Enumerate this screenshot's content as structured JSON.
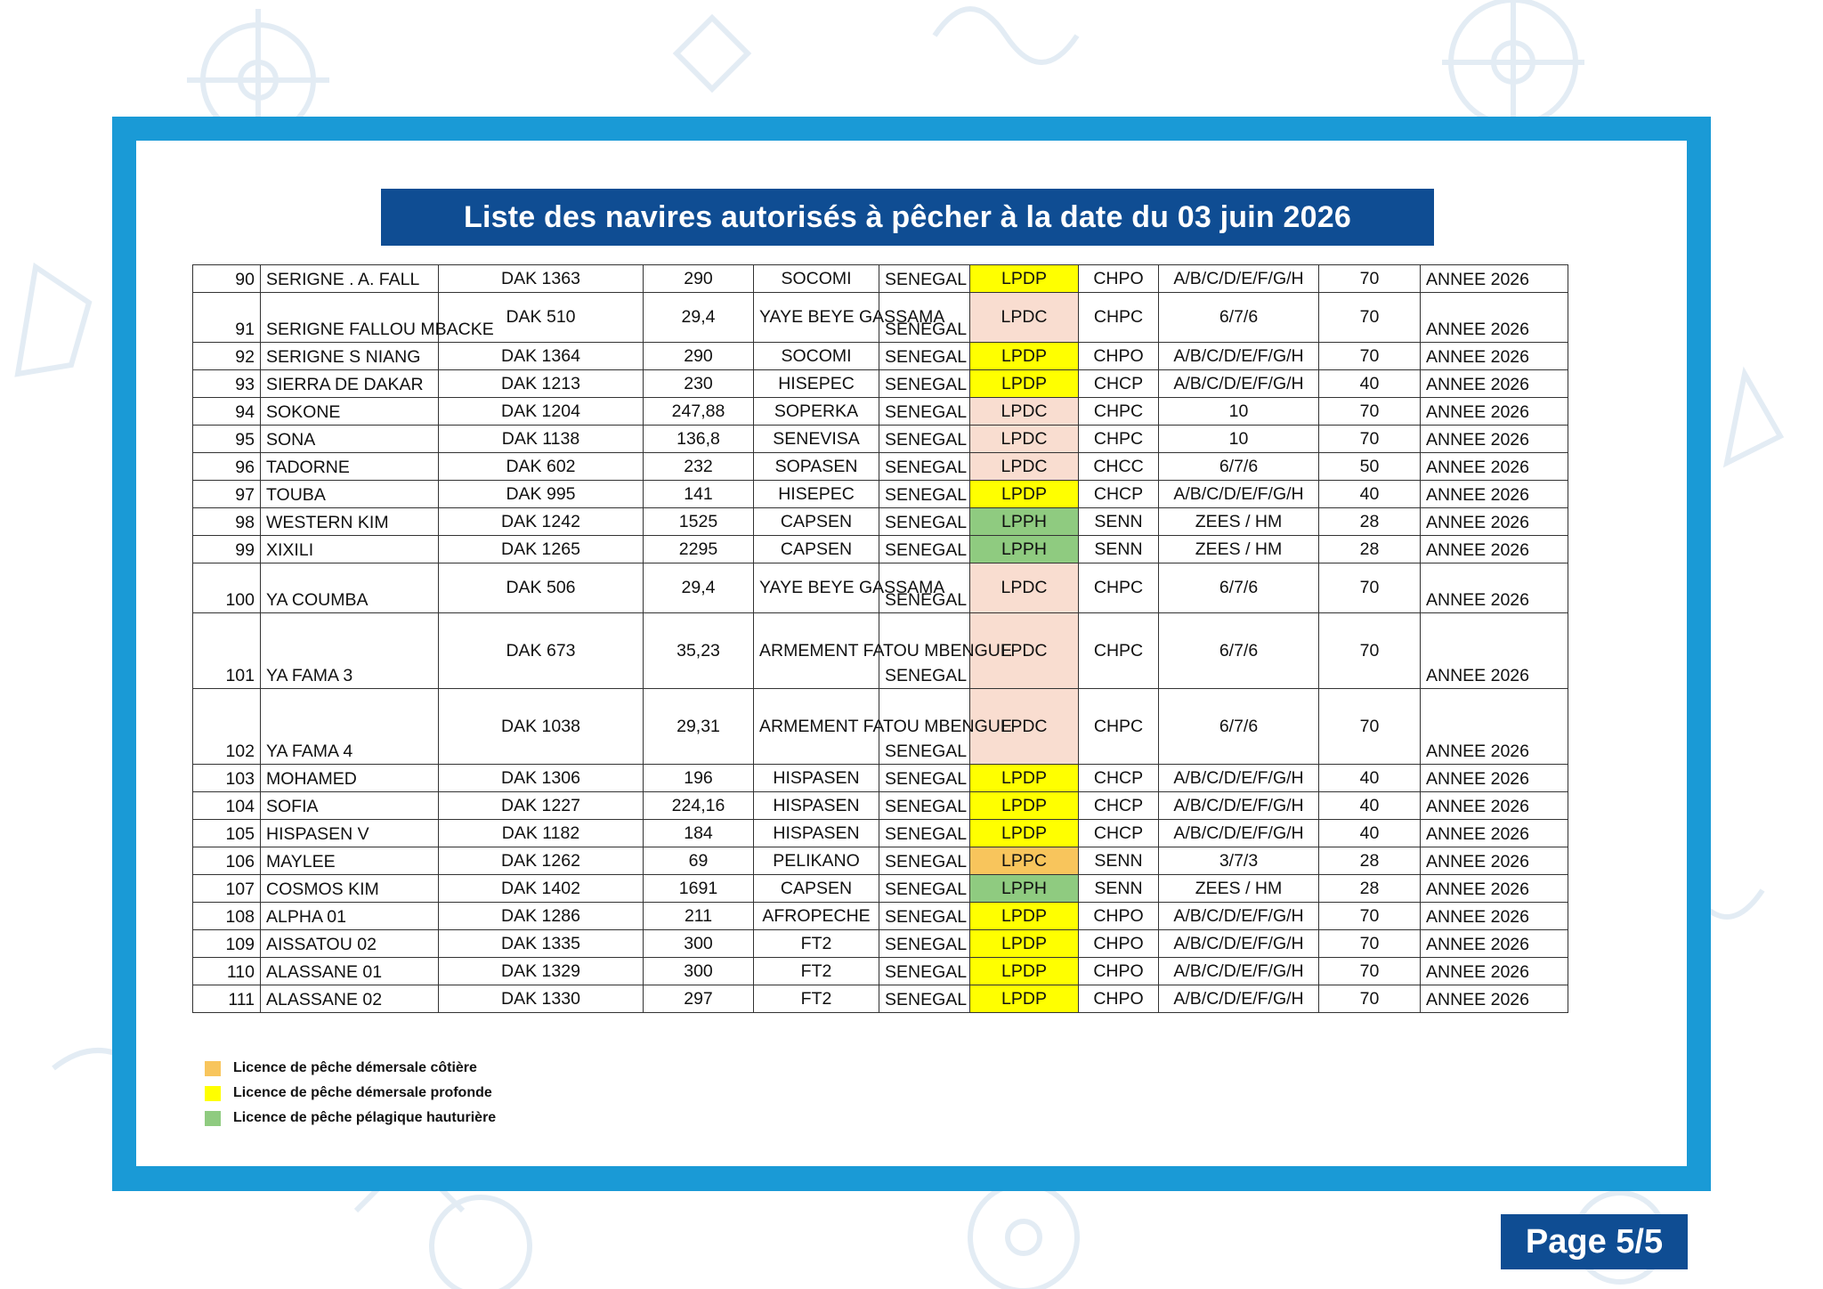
{
  "title": "Liste des navires autorisés à pêcher à la date du 03 juin 2026",
  "page_label": "Page 5/5",
  "colors": {
    "frame": "#1a9ad6",
    "banner": "#0f4d93",
    "LPDP": "#ffff00",
    "LPDC": "#f9ddd0",
    "LPPH": "#8fcb80",
    "LPPC": "#f8c55c"
  },
  "rows": [
    {
      "n": "90",
      "name": "SERIGNE . A. FALL",
      "reg": "DAK 1363",
      "gt": "290",
      "owner": "SOCOMI",
      "country": "SENEGAL",
      "licence": "LPDP",
      "cat": "CHPO",
      "zones": "A/B/C/D/E/F/G/H",
      "crew": "70",
      "validity": "ANNEE 2026",
      "size": 1
    },
    {
      "n": "91",
      "name": "SERIGNE FALLOU MBACKE",
      "reg": "DAK 510",
      "gt": "29,4",
      "owner": "YAYE BEYE GASSAMA",
      "country": "SENEGAL",
      "licence": "LPDC",
      "cat": "CHPC",
      "zones": "6/7/6",
      "crew": "70",
      "validity": "ANNEE 2026",
      "size": 2
    },
    {
      "n": "92",
      "name": "SERIGNE S NIANG",
      "reg": "DAK 1364",
      "gt": "290",
      "owner": "SOCOMI",
      "country": "SENEGAL",
      "licence": "LPDP",
      "cat": "CHPO",
      "zones": "A/B/C/D/E/F/G/H",
      "crew": "70",
      "validity": "ANNEE 2026",
      "size": 1
    },
    {
      "n": "93",
      "name": "SIERRA DE DAKAR",
      "reg": "DAK 1213",
      "gt": "230",
      "owner": "HISEPEC",
      "country": "SENEGAL",
      "licence": "LPDP",
      "cat": "CHCP",
      "zones": "A/B/C/D/E/F/G/H",
      "crew": "40",
      "validity": "ANNEE 2026",
      "size": 1
    },
    {
      "n": "94",
      "name": "SOKONE",
      "reg": "DAK 1204",
      "gt": "247,88",
      "owner": "SOPERKA",
      "country": "SENEGAL",
      "licence": "LPDC",
      "cat": "CHPC",
      "zones": "10",
      "crew": "70",
      "validity": "ANNEE 2026",
      "size": 1
    },
    {
      "n": "95",
      "name": "SONA",
      "reg": "DAK 1138",
      "gt": "136,8",
      "owner": "SENEVISA",
      "country": "SENEGAL",
      "licence": "LPDC",
      "cat": "CHPC",
      "zones": "10",
      "crew": "70",
      "validity": "ANNEE 2026",
      "size": 1
    },
    {
      "n": "96",
      "name": "TADORNE",
      "reg": "DAK 602",
      "gt": "232",
      "owner": "SOPASEN",
      "country": "SENEGAL",
      "licence": "LPDC",
      "cat": "CHCC",
      "zones": "6/7/6",
      "crew": "50",
      "validity": "ANNEE 2026",
      "size": 1
    },
    {
      "n": "97",
      "name": "TOUBA",
      "reg": "DAK 995",
      "gt": "141",
      "owner": "HISEPEC",
      "country": "SENEGAL",
      "licence": "LPDP",
      "cat": "CHCP",
      "zones": "A/B/C/D/E/F/G/H",
      "crew": "40",
      "validity": "ANNEE 2026",
      "size": 1
    },
    {
      "n": "98",
      "name": "WESTERN KIM",
      "reg": "DAK 1242",
      "gt": "1525",
      "owner": "CAPSEN",
      "country": "SENEGAL",
      "licence": "LPPH",
      "cat": "SENN",
      "zones": "ZEES / HM",
      "crew": "28",
      "validity": "ANNEE 2026",
      "size": 1
    },
    {
      "n": "99",
      "name": "XIXILI",
      "reg": "DAK 1265",
      "gt": "2295",
      "owner": "CAPSEN",
      "country": "SENEGAL",
      "licence": "LPPH",
      "cat": "SENN",
      "zones": "ZEES / HM",
      "crew": "28",
      "validity": "ANNEE 2026",
      "size": 1
    },
    {
      "n": "100",
      "name": "YA COUMBA",
      "reg": "DAK 506",
      "gt": "29,4",
      "owner": "YAYE BEYE GASSAMA",
      "country": "SENEGAL",
      "licence": "LPDC",
      "cat": "CHPC",
      "zones": "6/7/6",
      "crew": "70",
      "validity": "ANNEE 2026",
      "size": 2
    },
    {
      "n": "101",
      "name": "YA FAMA 3",
      "reg": "DAK 673",
      "gt": "35,23",
      "owner": "ARMEMENT FATOU MBENGUE",
      "country": "SENEGAL",
      "licence": "LPDC",
      "cat": "CHPC",
      "zones": "6/7/6",
      "crew": "70",
      "validity": "ANNEE 2026",
      "size": 3
    },
    {
      "n": "102",
      "name": "YA FAMA 4",
      "reg": "DAK 1038",
      "gt": "29,31",
      "owner": "ARMEMENT FATOU MBENGUE",
      "country": "SENEGAL",
      "licence": "LPDC",
      "cat": "CHPC",
      "zones": "6/7/6",
      "crew": "70",
      "validity": "ANNEE 2026",
      "size": 3
    },
    {
      "n": "103",
      "name": "MOHAMED",
      "reg": "DAK 1306",
      "gt": "196",
      "owner": "HISPASEN",
      "country": "SENEGAL",
      "licence": "LPDP",
      "cat": "CHCP",
      "zones": "A/B/C/D/E/F/G/H",
      "crew": "40",
      "validity": "ANNEE 2026",
      "size": 1
    },
    {
      "n": "104",
      "name": "SOFIA",
      "reg": "DAK 1227",
      "gt": "224,16",
      "owner": "HISPASEN",
      "country": "SENEGAL",
      "licence": "LPDP",
      "cat": "CHCP",
      "zones": "A/B/C/D/E/F/G/H",
      "crew": "40",
      "validity": "ANNEE 2026",
      "size": 1
    },
    {
      "n": "105",
      "name": "HISPASEN V",
      "reg": "DAK 1182",
      "gt": "184",
      "owner": "HISPASEN",
      "country": "SENEGAL",
      "licence": "LPDP",
      "cat": "CHCP",
      "zones": "A/B/C/D/E/F/G/H",
      "crew": "40",
      "validity": "ANNEE 2026",
      "size": 1
    },
    {
      "n": "106",
      "name": "MAYLEE",
      "reg": "DAK 1262",
      "gt": "69",
      "owner": "PELIKANO",
      "country": "SENEGAL",
      "licence": "LPPC",
      "cat": "SENN",
      "zones": "3/7/3",
      "crew": "28",
      "validity": "ANNEE 2026",
      "size": 1
    },
    {
      "n": "107",
      "name": "COSMOS KIM",
      "reg": "DAK 1402",
      "gt": "1691",
      "owner": "CAPSEN",
      "country": "SENEGAL",
      "licence": "LPPH",
      "cat": "SENN",
      "zones": "ZEES / HM",
      "crew": "28",
      "validity": "ANNEE 2026",
      "size": 1
    },
    {
      "n": "108",
      "name": "ALPHA 01",
      "reg": "DAK 1286",
      "gt": "211",
      "owner": "AFROPECHE",
      "country": "SENEGAL",
      "licence": "LPDP",
      "cat": "CHPO",
      "zones": "A/B/C/D/E/F/G/H",
      "crew": "70",
      "validity": "ANNEE 2026",
      "size": 1
    },
    {
      "n": "109",
      "name": "AISSATOU 02",
      "reg": "DAK 1335",
      "gt": "300",
      "owner": "FT2",
      "country": "SENEGAL",
      "licence": "LPDP",
      "cat": "CHPO",
      "zones": "A/B/C/D/E/F/G/H",
      "crew": "70",
      "validity": "ANNEE 2026",
      "size": 1
    },
    {
      "n": "110",
      "name": "ALASSANE 01",
      "reg": "DAK 1329",
      "gt": "300",
      "owner": "FT2",
      "country": "SENEGAL",
      "licence": "LPDP",
      "cat": "CHPO",
      "zones": "A/B/C/D/E/F/G/H",
      "crew": "70",
      "validity": "ANNEE 2026",
      "size": 1
    },
    {
      "n": "111",
      "name": "ALASSANE 02",
      "reg": "DAK 1330",
      "gt": "297",
      "owner": "FT2",
      "country": "SENEGAL",
      "licence": "LPDP",
      "cat": "CHPO",
      "zones": "A/B/C/D/E/F/G/H",
      "crew": "70",
      "validity": "ANNEE 2026",
      "size": 1
    }
  ],
  "legend": [
    {
      "label": "Licence de pêche démersale côtière",
      "color": "#f8c55c"
    },
    {
      "label": "Licence de pêche démersale profonde",
      "color": "#ffff00"
    },
    {
      "label": "Licence de pêche pélagique hauturière",
      "color": "#8fcb80"
    }
  ]
}
